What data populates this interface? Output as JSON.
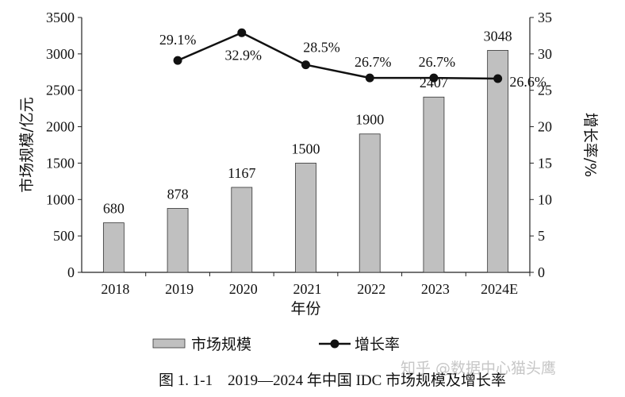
{
  "chart_data": {
    "type": "bar+line",
    "categories": [
      "2018",
      "2019",
      "2020",
      "2021",
      "2022",
      "2023",
      "2024E"
    ],
    "series": [
      {
        "name": "市场规模",
        "type": "bar",
        "axis": "left",
        "values": [
          680,
          878,
          1167,
          1500,
          1900,
          2407,
          3048
        ],
        "color": "#c0c0c0"
      },
      {
        "name": "增长率",
        "type": "line",
        "axis": "right",
        "values": [
          null,
          29.1,
          32.9,
          28.5,
          26.7,
          26.7,
          26.6
        ],
        "labels": [
          "",
          "29.1%",
          "32.9%",
          "28.5%",
          "26.7%",
          "26.7%",
          "26.6%"
        ],
        "color": "#111111"
      }
    ],
    "xlabel": "年份",
    "ylabel": "市场规模/亿元",
    "y2label": "增长率/%",
    "ylim": [
      0,
      3500
    ],
    "yticks": [
      0,
      500,
      1000,
      1500,
      2000,
      2500,
      3000,
      3500
    ],
    "y2lim": [
      0,
      35
    ],
    "y2ticks": [
      0,
      5,
      10,
      15,
      20,
      25,
      30,
      35
    ],
    "grid": false,
    "legend_position": "bottom",
    "caption": "图 1. 1-1　2019—2024 年中国 IDC 市场规模及增长率"
  },
  "watermark": "知乎 @数据中心猫头鹰"
}
